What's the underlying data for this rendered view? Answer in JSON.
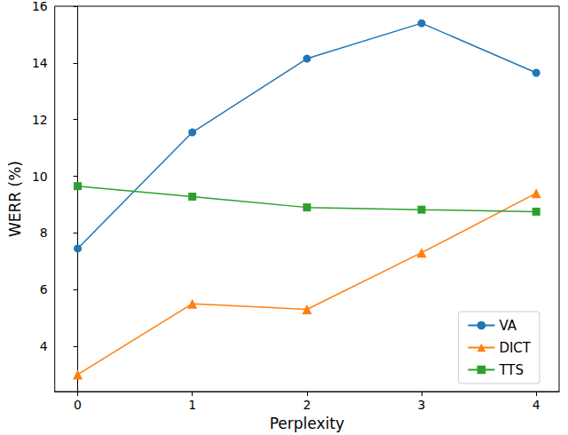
{
  "chart_data": {
    "type": "line",
    "x_label": "Perplexity",
    "y_label": "WERR (%)",
    "x": [
      0,
      1,
      2,
      3,
      4
    ],
    "series": [
      {
        "name": "VA",
        "color": "#1f77b4",
        "marker": "circle",
        "values": [
          7.45,
          11.55,
          14.15,
          15.4,
          13.65
        ]
      },
      {
        "name": "DICT",
        "color": "#ff7f0e",
        "marker": "triangle",
        "values": [
          3.0,
          5.5,
          5.3,
          7.3,
          9.4
        ]
      },
      {
        "name": "TTS",
        "color": "#2ca02c",
        "marker": "square",
        "values": [
          9.65,
          9.28,
          8.9,
          8.82,
          8.75
        ]
      }
    ],
    "xlim": [
      -0.2,
      4.2
    ],
    "xticks": [
      0,
      1,
      2,
      3,
      4
    ],
    "ylim": [
      2.4,
      16.0
    ],
    "yticks": [
      4,
      6,
      8,
      10,
      12,
      14,
      16
    ],
    "grid": false,
    "legend": "lower right"
  }
}
